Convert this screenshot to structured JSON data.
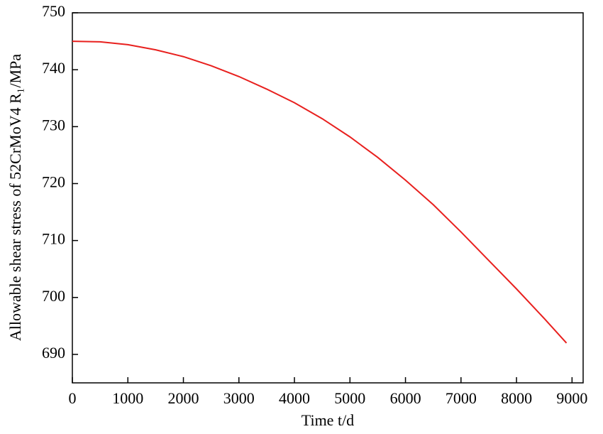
{
  "chart_data": {
    "type": "line",
    "x_label": "Time t/d",
    "y_label": "Allowable shear stress of 52CrMoV4  R₁/MPa",
    "x": [
      0,
      500,
      1000,
      1500,
      2000,
      2500,
      3000,
      3500,
      4000,
      4500,
      5000,
      5500,
      6000,
      6500,
      7000,
      7500,
      8000,
      8500,
      8900
    ],
    "series": [
      {
        "color": "#e8201e",
        "values": [
          745,
          744.9,
          744.4,
          743.5,
          742.3,
          740.7,
          738.8,
          736.6,
          734.2,
          731.4,
          728.2,
          724.6,
          720.6,
          716.3,
          711.5,
          706.5,
          701.5,
          696.3,
          692
        ]
      }
    ],
    "xlim": [
      0,
      9200
    ],
    "ylim": [
      685,
      750
    ],
    "xticks": [
      0,
      1000,
      2000,
      3000,
      4000,
      5000,
      6000,
      7000,
      8000,
      9000
    ],
    "yticks": [
      690,
      700,
      710,
      720,
      730,
      740,
      750
    ]
  }
}
